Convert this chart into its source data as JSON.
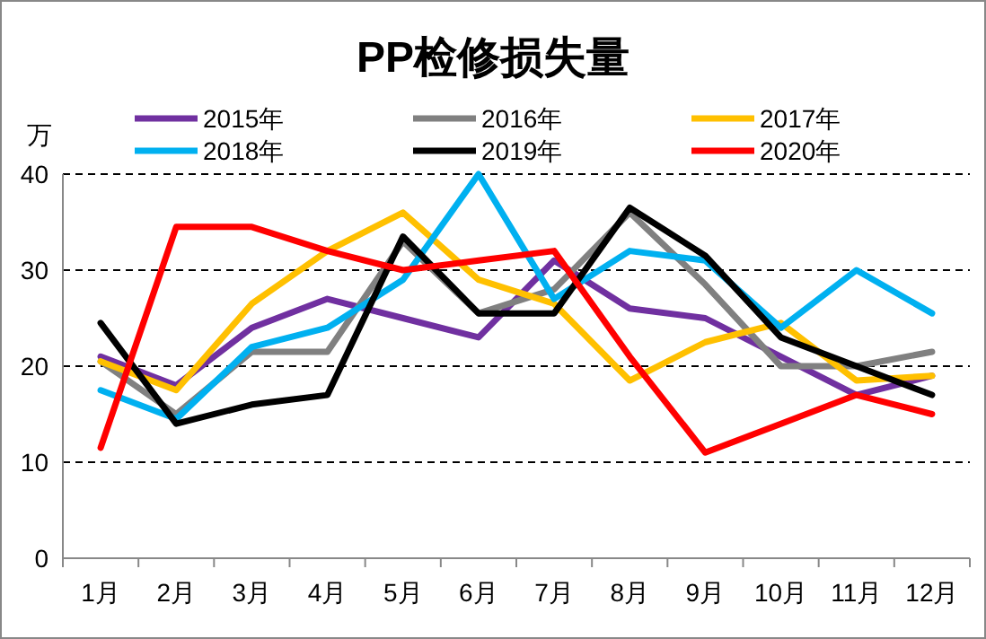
{
  "chart_data": {
    "type": "line",
    "title": "PP检修损失量",
    "ylabel": "万",
    "categories": [
      "1月",
      "2月",
      "3月",
      "4月",
      "5月",
      "6月",
      "7月",
      "8月",
      "9月",
      "10月",
      "11月",
      "12月"
    ],
    "ylim": [
      0,
      40
    ],
    "yticks": [
      0,
      10,
      20,
      30,
      40
    ],
    "grid": "y",
    "legend": "top",
    "marker": "none",
    "line_style": "solid",
    "series": [
      {
        "name": "2015年",
        "color": "#7030a0",
        "values": [
          21,
          18,
          24,
          27,
          25,
          23,
          31,
          26,
          25,
          21,
          17,
          19
        ]
      },
      {
        "name": "2016年",
        "color": "#808080",
        "values": [
          20.5,
          15,
          21.5,
          21.5,
          33,
          25.5,
          28,
          36,
          28.5,
          20,
          20,
          21.5
        ]
      },
      {
        "name": "2017年",
        "color": "#ffc000",
        "values": [
          20.5,
          17.5,
          26.5,
          32,
          36,
          29,
          26.5,
          18.5,
          22.5,
          24.5,
          18.5,
          19
        ]
      },
      {
        "name": "2018年",
        "color": "#00b0f0",
        "values": [
          17.5,
          14.5,
          22,
          24,
          29,
          40,
          27,
          32,
          31,
          24,
          30,
          25.5
        ]
      },
      {
        "name": "2019年",
        "color": "#000000",
        "values": [
          24.5,
          14,
          16,
          17,
          33.5,
          25.5,
          25.5,
          36.5,
          31.5,
          23,
          20,
          17
        ]
      },
      {
        "name": "2020年",
        "color": "#ff0000",
        "values": [
          11.5,
          34.5,
          34.5,
          32,
          30,
          31,
          32,
          21,
          11,
          14,
          17,
          15
        ]
      }
    ]
  }
}
